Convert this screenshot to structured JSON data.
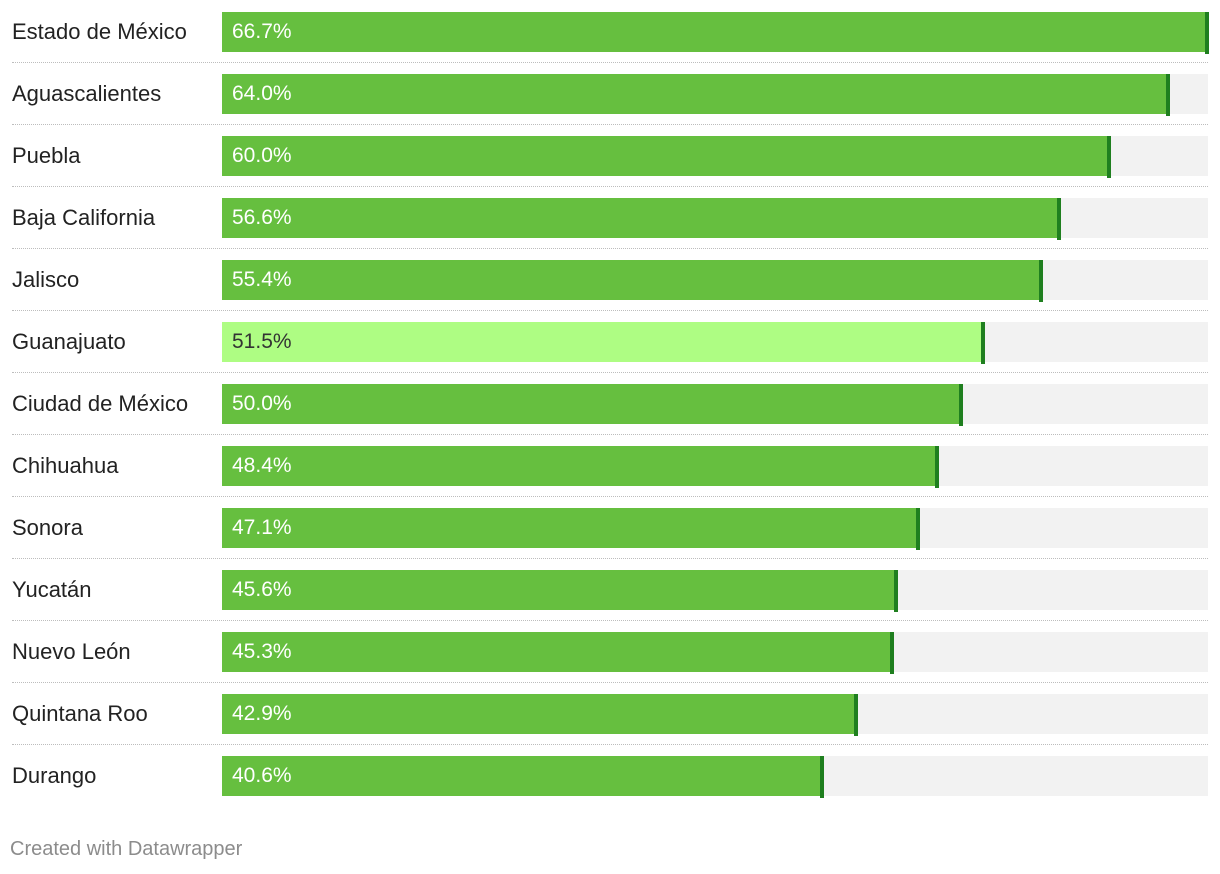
{
  "chart_data": {
    "type": "bar",
    "orientation": "horizontal",
    "title": "",
    "xlabel": "",
    "ylabel": "",
    "xlim": [
      0,
      66.7
    ],
    "categories": [
      "Estado de México",
      "Aguascalientes",
      "Puebla",
      "Baja California",
      "Jalisco",
      "Guanajuato",
      "Ciudad de México",
      "Chihuahua",
      "Sonora",
      "Yucatán",
      "Nuevo León",
      "Quintana Roo",
      "Durango"
    ],
    "values": [
      66.7,
      64.0,
      60.0,
      56.6,
      55.4,
      51.5,
      50.0,
      48.4,
      47.1,
      45.6,
      45.3,
      42.9,
      40.6
    ],
    "value_labels": [
      "66.7%",
      "64.0%",
      "60.0%",
      "56.6%",
      "55.4%",
      "51.5%",
      "50.0%",
      "48.4%",
      "47.1%",
      "45.6%",
      "45.3%",
      "42.9%",
      "40.6%"
    ],
    "highlighted": [
      "Guanajuato"
    ],
    "colors": {
      "bar": "#66bf3f",
      "bar_highlight": "#aefd83",
      "marker": "#1f7f1f",
      "track": "#f2f2f2"
    }
  },
  "footer": {
    "credit": "Created with Datawrapper"
  }
}
